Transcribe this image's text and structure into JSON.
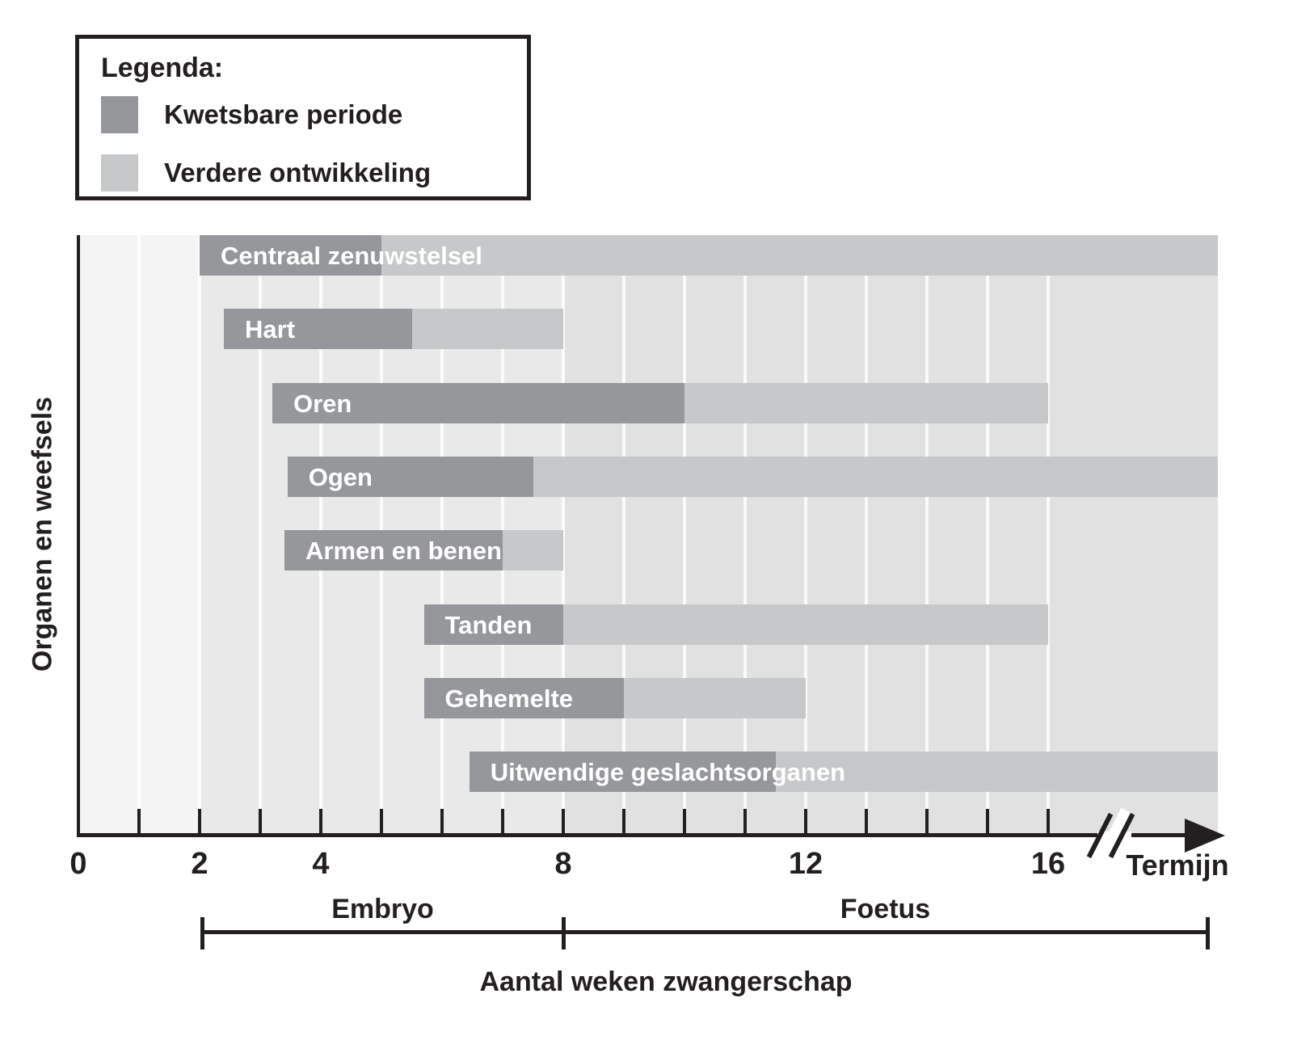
{
  "legend": {
    "title": "Legenda:",
    "items": [
      {
        "id": "vulnerable",
        "label": "Kwetsbare periode"
      },
      {
        "id": "further",
        "label": "Verdere ontwikkeling"
      }
    ]
  },
  "y_axis_title": "Organen en weefsels",
  "x_axis": {
    "tick_labels": [
      {
        "week": 0,
        "text": "0"
      },
      {
        "week": 2,
        "text": "2"
      },
      {
        "week": 4,
        "text": "4"
      },
      {
        "week": 8,
        "text": "8"
      },
      {
        "week": 12,
        "text": "12"
      },
      {
        "week": 16,
        "text": "16"
      }
    ],
    "end_label": "Termijn",
    "title": "Aantal weken zwangerschap"
  },
  "period_bracket": {
    "segments": [
      {
        "label": "Embryo",
        "from_week": 2,
        "to_week": 8
      },
      {
        "label": "Foetus",
        "from_week": 8,
        "to_week": "termijn"
      }
    ]
  },
  "chart_data": {
    "type": "bar",
    "subtype": "gantt-timeline",
    "x_unit": "weken zwangerschap (gestational weeks)",
    "axis_range": [
      0,
      16
    ],
    "minor_tick_every_weeks": 1,
    "axis_break_after_week": 16,
    "axis_end": "termijn",
    "legend": {
      "vulnerable": "Kwetsbare periode",
      "further": "Verdere ontwikkeling"
    },
    "rows": [
      {
        "label": "Centraal zenuwstelsel",
        "vulnerable_weeks": [
          2,
          5
        ],
        "further_until": "termijn"
      },
      {
        "label": "Hart",
        "vulnerable_weeks": [
          2.4,
          5.5
        ],
        "further_until": 8
      },
      {
        "label": "Oren",
        "vulnerable_weeks": [
          3.2,
          10
        ],
        "further_until": 16
      },
      {
        "label": "Ogen",
        "vulnerable_weeks": [
          3.45,
          7.5
        ],
        "further_until": "termijn"
      },
      {
        "label": "Armen en benen",
        "vulnerable_weeks": [
          3.4,
          7
        ],
        "further_until": 8
      },
      {
        "label": "Tanden",
        "vulnerable_weeks": [
          5.7,
          8
        ],
        "further_until": 16
      },
      {
        "label": "Gehemelte",
        "vulnerable_weeks": [
          5.7,
          9
        ],
        "further_until": 12
      },
      {
        "label": "Uitwendige geslachtsorganen",
        "vulnerable_weeks": [
          6.45,
          11.5
        ],
        "further_until": "termijn"
      }
    ],
    "background_bands": [
      {
        "from_week": 0,
        "to_week": 2,
        "color": "#f4f4f5"
      },
      {
        "from_week": 2,
        "to_week": 8,
        "color": "#e9e9ea"
      },
      {
        "from_week": 8,
        "to_week": "termijn",
        "color": "#e1e1e2"
      }
    ],
    "colors": {
      "vulnerable": "#95979a",
      "further": "#c6c8ca",
      "text": "#231f20",
      "bar_label": "#ffffff"
    }
  }
}
